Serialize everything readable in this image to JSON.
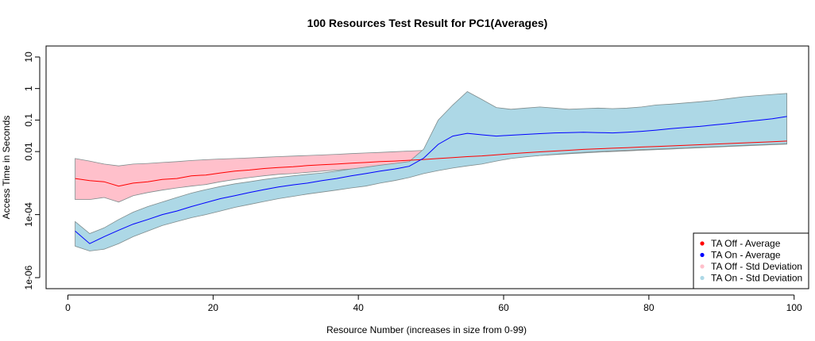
{
  "chart_data": {
    "type": "line",
    "title": "100 Resources Test Result for PC1(Averages)",
    "xlabel": "Resource Number (increases in size from 0-99)",
    "ylabel": "Access Time in Seconds",
    "xlim": [
      -3,
      102
    ],
    "ylim_log10": [
      -6.35,
      1.35
    ],
    "y_scale": "log",
    "grid": false,
    "legend_position": "bottom-right",
    "x_ticks": [
      0,
      20,
      40,
      60,
      80,
      100
    ],
    "x_tick_labels": [
      "0",
      "20",
      "40",
      "60",
      "80",
      "100"
    ],
    "y_ticks": [
      1e-06,
      0.0001,
      0.01,
      0.1,
      1,
      10
    ],
    "y_tick_labels": [
      "1e-06",
      "1e-04",
      "0.01",
      "0.1",
      "1",
      "10"
    ],
    "x": [
      1,
      3,
      5,
      7,
      9,
      11,
      13,
      15,
      17,
      19,
      21,
      23,
      25,
      27,
      29,
      31,
      33,
      35,
      37,
      39,
      41,
      43,
      45,
      47,
      49,
      51,
      53,
      55,
      57,
      59,
      61,
      63,
      65,
      67,
      69,
      71,
      73,
      75,
      77,
      79,
      81,
      83,
      85,
      87,
      89,
      91,
      93,
      95,
      97,
      99
    ],
    "series": [
      {
        "name": "TA Off - Average",
        "color": "#ff0000",
        "values": [
          0.0014,
          0.0012,
          0.0011,
          0.0008,
          0.001,
          0.0011,
          0.0013,
          0.0014,
          0.0017,
          0.0018,
          0.0021,
          0.0024,
          0.0026,
          0.0029,
          0.0031,
          0.0033,
          0.0036,
          0.0038,
          0.004,
          0.0043,
          0.0045,
          0.0048,
          0.005,
          0.0053,
          0.0056,
          0.006,
          0.0064,
          0.0069,
          0.0073,
          0.0079,
          0.0085,
          0.0092,
          0.0098,
          0.0104,
          0.011,
          0.0117,
          0.0123,
          0.0128,
          0.0133,
          0.0139,
          0.0145,
          0.0151,
          0.0158,
          0.0165,
          0.0172,
          0.018,
          0.0188,
          0.0196,
          0.0204,
          0.0215
        ]
      },
      {
        "name": "TA On - Average",
        "color": "#0000ff",
        "values": [
          3e-05,
          1.2e-05,
          2e-05,
          3.2e-05,
          5e-05,
          7e-05,
          0.0001,
          0.00013,
          0.00018,
          0.00024,
          0.00032,
          0.0004,
          0.0005,
          0.00062,
          0.00075,
          0.00088,
          0.001,
          0.0012,
          0.0014,
          0.0017,
          0.002,
          0.0024,
          0.0028,
          0.0034,
          0.0062,
          0.017,
          0.031,
          0.038,
          0.034,
          0.031,
          0.033,
          0.035,
          0.037,
          0.039,
          0.04,
          0.041,
          0.04,
          0.039,
          0.041,
          0.044,
          0.048,
          0.053,
          0.058,
          0.063,
          0.07,
          0.078,
          0.088,
          0.098,
          0.11,
          0.13
        ]
      },
      {
        "name": "TA Off - Std Deviation",
        "color": "#ffc0cb",
        "lower": [
          0.0003,
          0.0003,
          0.00035,
          0.00025,
          0.0004,
          0.0005,
          0.0006,
          0.0007,
          0.0008,
          0.0009,
          0.0011,
          0.0013,
          0.0015,
          0.0017,
          0.0019,
          0.002,
          0.0022,
          0.0024,
          0.0026,
          0.0028,
          0.003,
          0.0033,
          0.0035,
          0.0038,
          0.0041,
          0.0044,
          0.0047,
          0.0051,
          0.0055,
          0.006,
          0.0065,
          0.007,
          0.0075,
          0.008,
          0.0085,
          0.009,
          0.0096,
          0.01,
          0.0105,
          0.011,
          0.0115,
          0.012,
          0.0126,
          0.0132,
          0.0138,
          0.0145,
          0.0151,
          0.0158,
          0.0165,
          0.0172
        ],
        "upper": [
          0.006,
          0.005,
          0.004,
          0.0035,
          0.004,
          0.0042,
          0.0045,
          0.0048,
          0.0052,
          0.0055,
          0.0058,
          0.006,
          0.0063,
          0.0066,
          0.0069,
          0.0072,
          0.0075,
          0.0078,
          0.0082,
          0.0086,
          0.009,
          0.0094,
          0.0099,
          0.0104,
          0.0109,
          0.0114,
          0.0119,
          0.0125,
          0.013,
          0.0136,
          0.0143,
          0.015,
          0.0158,
          0.0166,
          0.0175,
          0.0185,
          0.0195,
          0.0205,
          0.0215,
          0.0225,
          0.0235,
          0.0245,
          0.0255,
          0.0265,
          0.0275,
          0.0285,
          0.0295,
          0.0305,
          0.0315,
          0.0325
        ]
      },
      {
        "name": "TA On - Std Deviation",
        "color": "#add8e6",
        "lower": [
          1e-05,
          7e-06,
          8e-06,
          1.2e-05,
          2e-05,
          3e-05,
          4.5e-05,
          6e-05,
          8e-05,
          0.0001,
          0.00013,
          0.00017,
          0.00021,
          0.00026,
          0.00032,
          0.00038,
          0.00045,
          0.00052,
          0.0006,
          0.0007,
          0.0008,
          0.001,
          0.0012,
          0.0015,
          0.002,
          0.0025,
          0.003,
          0.0035,
          0.004,
          0.005,
          0.006,
          0.0068,
          0.0075,
          0.0082,
          0.0088,
          0.0094,
          0.01,
          0.0105,
          0.011,
          0.0115,
          0.012,
          0.0125,
          0.0131,
          0.0137,
          0.0143,
          0.015,
          0.0157,
          0.0164,
          0.0171,
          0.0178
        ],
        "upper": [
          6e-05,
          2.5e-05,
          3.8e-05,
          7e-05,
          0.00012,
          0.00018,
          0.00025,
          0.00035,
          0.00048,
          0.00062,
          0.00078,
          0.00095,
          0.0011,
          0.0013,
          0.0015,
          0.0017,
          0.0019,
          0.0021,
          0.0024,
          0.0028,
          0.0032,
          0.0037,
          0.0042,
          0.0048,
          0.012,
          0.1,
          0.3,
          0.8,
          0.45,
          0.25,
          0.22,
          0.24,
          0.26,
          0.24,
          0.22,
          0.23,
          0.24,
          0.23,
          0.24,
          0.26,
          0.3,
          0.32,
          0.35,
          0.38,
          0.42,
          0.48,
          0.55,
          0.6,
          0.65,
          0.7
        ]
      }
    ],
    "legend": [
      {
        "label": "TA Off - Average",
        "color": "#ff0000"
      },
      {
        "label": "TA On - Average",
        "color": "#0000ff"
      },
      {
        "label": "TA Off - Std Deviation",
        "color": "#ffc0cb"
      },
      {
        "label": "TA On - Std Deviation",
        "color": "#add8e6"
      }
    ]
  }
}
